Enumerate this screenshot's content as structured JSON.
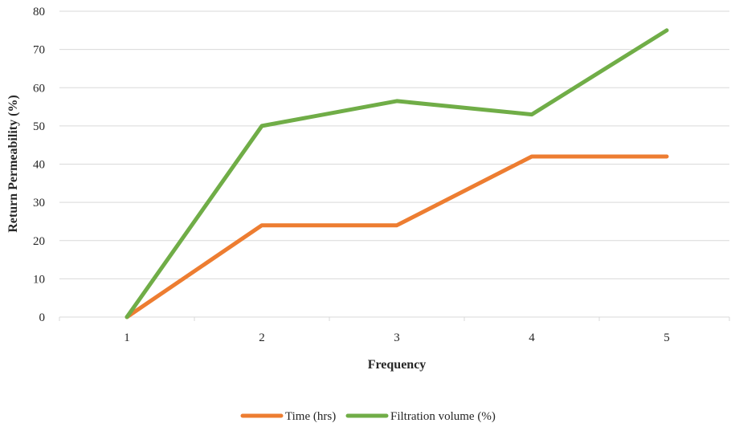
{
  "chart_data": {
    "type": "line",
    "categories": [
      "1",
      "2",
      "3",
      "4",
      "5"
    ],
    "xlabel": "Frequency",
    "ylabel": "Return Permeability (%)",
    "ylim": [
      0,
      80
    ],
    "yticks": [
      "0",
      "10",
      "20",
      "30",
      "40",
      "50",
      "60",
      "70",
      "80"
    ],
    "grid": true,
    "legend_position": "bottom",
    "series": [
      {
        "name": "Time (hrs)",
        "color": "#ED7D31",
        "values": [
          0,
          24,
          24,
          42,
          42
        ]
      },
      {
        "name": "Filtration volume (%)",
        "color": "#70AD47",
        "values": [
          0,
          50,
          56.5,
          53,
          75
        ]
      }
    ]
  }
}
